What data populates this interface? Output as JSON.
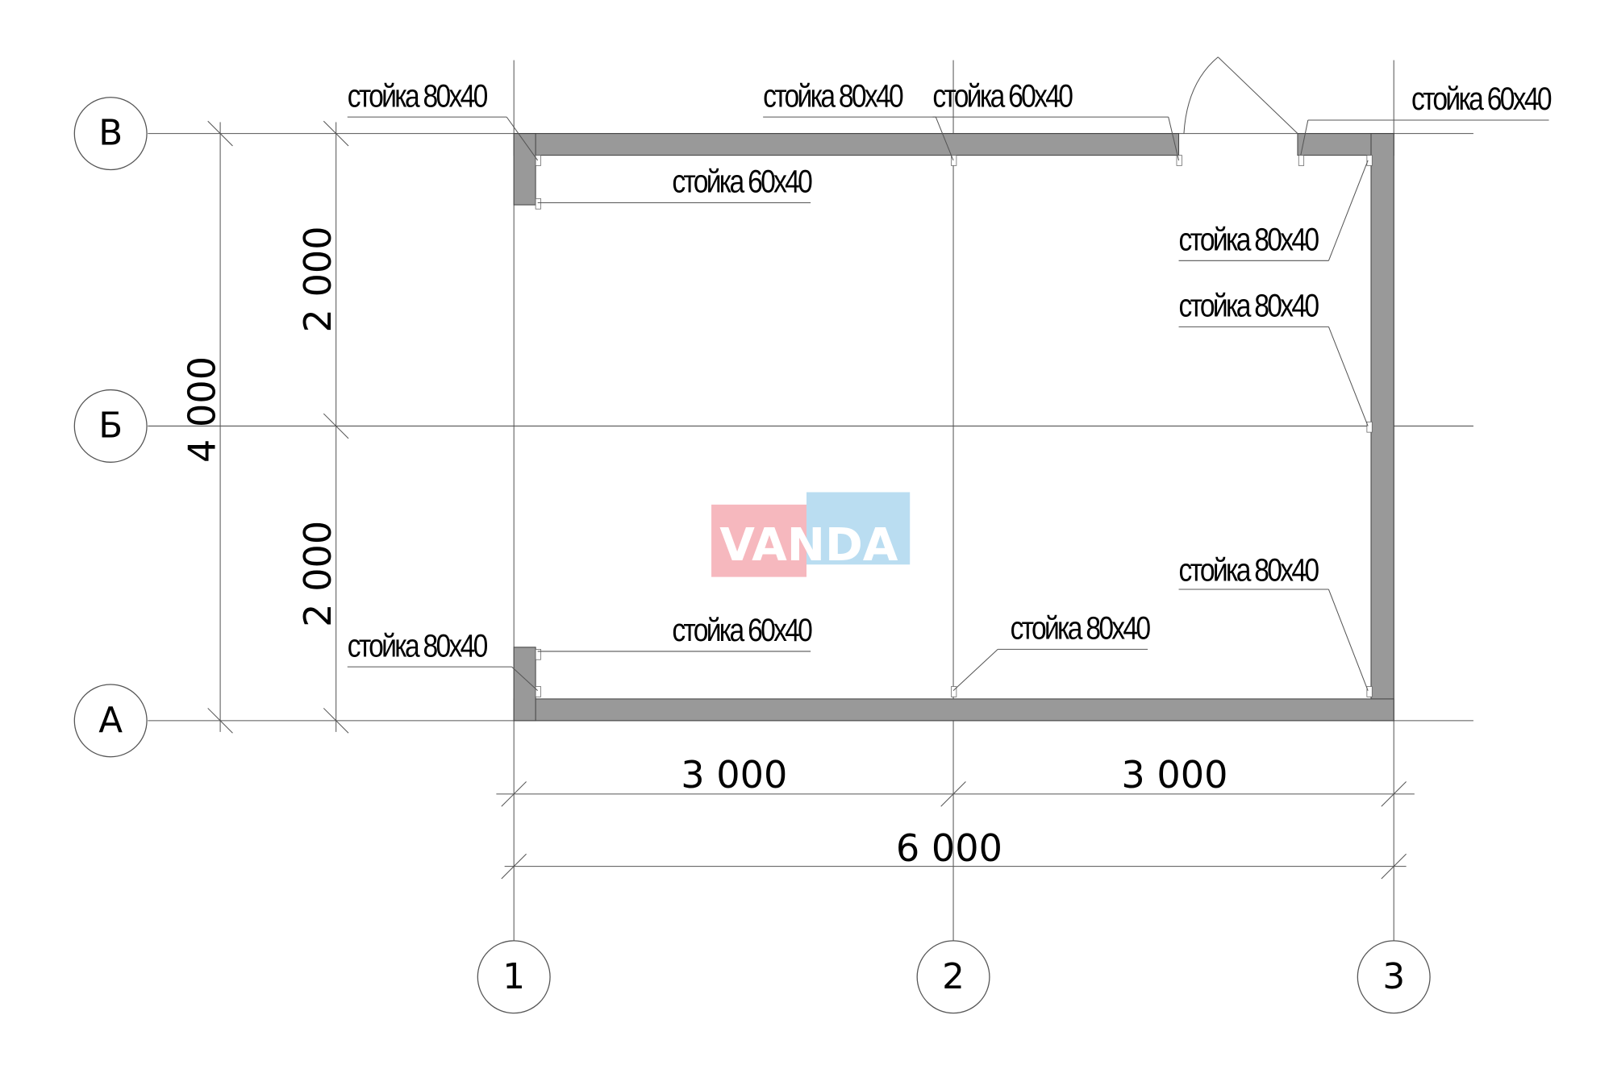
{
  "axes": {
    "rows": [
      "В",
      "Б",
      "А"
    ],
    "columns": [
      "1",
      "2",
      "3"
    ]
  },
  "dimensions": {
    "vertical_total": "4 000",
    "vertical_upper": "2 000",
    "vertical_lower": "2 000",
    "horizontal_left": "3 000",
    "horizontal_right": "3 000",
    "horizontal_total": "6 000"
  },
  "labels": [
    "стойка 80x40",
    "стойка 80x40",
    "стойка 60x40",
    "стойка 60x40",
    "стойка 60x40",
    "стойка 80x40",
    "стойка 80x40",
    "стойка 80x40",
    "стойка 80x40",
    "стойка 60x40",
    "стойка 80x40"
  ],
  "watermark": "VANDA",
  "colors": {
    "wall": "#999999",
    "watermark_red": "#f4a6ae",
    "watermark_blue": "#a9d4ee"
  }
}
